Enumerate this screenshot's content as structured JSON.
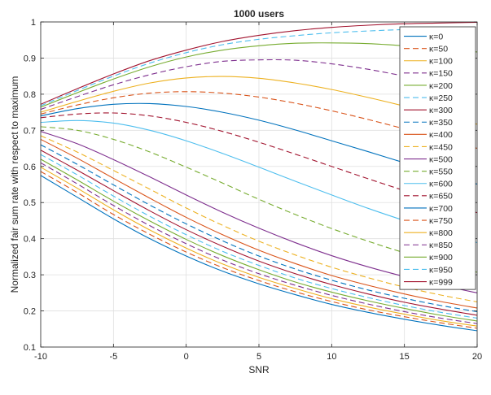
{
  "chart_data": {
    "type": "line",
    "title": "1000 users",
    "xlabel": "SNR",
    "ylabel": "Normalized fair sum rate with respect to maximum",
    "xlim": [
      -10,
      20
    ],
    "ylim": [
      0.1,
      1.0
    ],
    "xticks": [
      -10,
      -5,
      0,
      5,
      10,
      15,
      20
    ],
    "xtick_labels": [
      "-10",
      "-5",
      "0",
      "5",
      "10",
      "15",
      "20"
    ],
    "yticks": [
      0.1,
      0.2,
      0.3,
      0.4,
      0.5,
      0.6,
      0.7,
      0.8,
      0.9,
      1.0
    ],
    "ytick_labels": [
      "0.1",
      "0.2",
      "0.3",
      "0.4",
      "0.5",
      "0.6",
      "0.7",
      "0.8",
      "0.9",
      "1"
    ],
    "grid": true,
    "legend_position": "top-right",
    "x": [
      -10,
      -7.5,
      -5,
      -2.5,
      0,
      2.5,
      5,
      7.5,
      10,
      12.5,
      15,
      17.5,
      20
    ],
    "series": [
      {
        "name": "κ=0",
        "color": "#0072BD",
        "dash": "solid",
        "values": [
          0.575,
          0.515,
          0.455,
          0.4,
          0.352,
          0.31,
          0.275,
          0.245,
          0.218,
          0.196,
          0.177,
          0.16,
          0.145
        ]
      },
      {
        "name": "κ=50",
        "color": "#D95319",
        "dash": "dashed",
        "values": [
          0.586,
          0.528,
          0.467,
          0.412,
          0.363,
          0.32,
          0.284,
          0.253,
          0.226,
          0.203,
          0.184,
          0.167,
          0.152
        ]
      },
      {
        "name": "κ=100",
        "color": "#EDB120",
        "dash": "solid",
        "values": [
          0.598,
          0.54,
          0.48,
          0.424,
          0.374,
          0.33,
          0.293,
          0.262,
          0.234,
          0.211,
          0.191,
          0.173,
          0.158
        ]
      },
      {
        "name": "κ=150",
        "color": "#7E2F8E",
        "dash": "dashed",
        "values": [
          0.61,
          0.552,
          0.492,
          0.436,
          0.386,
          0.341,
          0.303,
          0.271,
          0.243,
          0.219,
          0.198,
          0.18,
          0.165
        ]
      },
      {
        "name": "κ=200",
        "color": "#77AC30",
        "dash": "solid",
        "values": [
          0.62,
          0.563,
          0.504,
          0.449,
          0.398,
          0.353,
          0.314,
          0.28,
          0.252,
          0.228,
          0.207,
          0.188,
          0.172
        ]
      },
      {
        "name": "κ=250",
        "color": "#4DBEEE",
        "dash": "dashed",
        "values": [
          0.633,
          0.577,
          0.518,
          0.462,
          0.411,
          0.365,
          0.326,
          0.291,
          0.262,
          0.237,
          0.215,
          0.196,
          0.18
        ]
      },
      {
        "name": "κ=300",
        "color": "#A2142F",
        "dash": "solid",
        "values": [
          0.645,
          0.59,
          0.533,
          0.477,
          0.425,
          0.379,
          0.338,
          0.303,
          0.273,
          0.247,
          0.224,
          0.205,
          0.188
        ]
      },
      {
        "name": "κ=350",
        "color": "#0072BD",
        "dash": "dashed",
        "values": [
          0.66,
          0.606,
          0.549,
          0.493,
          0.441,
          0.394,
          0.352,
          0.316,
          0.285,
          0.258,
          0.235,
          0.215,
          0.198
        ]
      },
      {
        "name": "κ=400",
        "color": "#D95319",
        "dash": "solid",
        "values": [
          0.675,
          0.623,
          0.567,
          0.512,
          0.459,
          0.411,
          0.368,
          0.331,
          0.298,
          0.271,
          0.247,
          0.226,
          0.208
        ]
      },
      {
        "name": "κ=450",
        "color": "#EDB120",
        "dash": "dashed",
        "values": [
          0.685,
          0.64,
          0.589,
          0.537,
          0.485,
          0.437,
          0.393,
          0.355,
          0.321,
          0.292,
          0.266,
          0.244,
          0.225
        ]
      },
      {
        "name": "κ=500",
        "color": "#7E2F8E",
        "dash": "solid",
        "values": [
          0.697,
          0.663,
          0.619,
          0.571,
          0.521,
          0.473,
          0.429,
          0.389,
          0.353,
          0.322,
          0.295,
          0.271,
          0.25
        ]
      },
      {
        "name": "κ=550",
        "color": "#77AC30",
        "dash": "dashed",
        "values": [
          0.71,
          0.7,
          0.675,
          0.64,
          0.598,
          0.554,
          0.509,
          0.467,
          0.428,
          0.393,
          0.361,
          0.333,
          0.307
        ]
      },
      {
        "name": "κ=600",
        "color": "#4DBEEE",
        "dash": "solid",
        "values": [
          0.722,
          0.727,
          0.72,
          0.7,
          0.671,
          0.636,
          0.598,
          0.559,
          0.521,
          0.484,
          0.45,
          0.418,
          0.389
        ]
      },
      {
        "name": "κ=650",
        "color": "#A2142F",
        "dash": "dashed",
        "values": [
          0.735,
          0.745,
          0.748,
          0.74,
          0.722,
          0.697,
          0.667,
          0.634,
          0.6,
          0.566,
          0.533,
          0.502,
          0.472
        ]
      },
      {
        "name": "κ=700",
        "color": "#0072BD",
        "dash": "solid",
        "values": [
          0.74,
          0.76,
          0.772,
          0.774,
          0.766,
          0.75,
          0.728,
          0.701,
          0.671,
          0.641,
          0.61,
          0.58,
          0.551
        ]
      },
      {
        "name": "κ=750",
        "color": "#D95319",
        "dash": "dashed",
        "values": [
          0.745,
          0.77,
          0.79,
          0.803,
          0.807,
          0.803,
          0.792,
          0.775,
          0.754,
          0.73,
          0.704,
          0.677,
          0.65
        ]
      },
      {
        "name": "κ=800",
        "color": "#EDB120",
        "dash": "solid",
        "values": [
          0.75,
          0.78,
          0.808,
          0.831,
          0.845,
          0.849,
          0.844,
          0.831,
          0.813,
          0.791,
          0.767,
          0.742,
          0.717
        ]
      },
      {
        "name": "κ=850",
        "color": "#7E2F8E",
        "dash": "dashed",
        "values": [
          0.758,
          0.793,
          0.826,
          0.854,
          0.876,
          0.891,
          0.895,
          0.894,
          0.884,
          0.869,
          0.85,
          0.83,
          0.808
        ]
      },
      {
        "name": "κ=900",
        "color": "#77AC30",
        "dash": "solid",
        "values": [
          0.764,
          0.804,
          0.842,
          0.876,
          0.903,
          0.922,
          0.934,
          0.941,
          0.942,
          0.94,
          0.934,
          0.926,
          0.917
        ]
      },
      {
        "name": "κ=950",
        "color": "#4DBEEE",
        "dash": "dashed",
        "values": [
          0.768,
          0.81,
          0.85,
          0.886,
          0.915,
          0.937,
          0.952,
          0.962,
          0.97,
          0.975,
          0.979,
          0.981,
          0.983
        ]
      },
      {
        "name": "κ=999",
        "color": "#A2142F",
        "dash": "solid",
        "values": [
          0.772,
          0.815,
          0.856,
          0.893,
          0.922,
          0.946,
          0.963,
          0.976,
          0.985,
          0.991,
          0.995,
          0.997,
          0.999
        ]
      }
    ]
  }
}
